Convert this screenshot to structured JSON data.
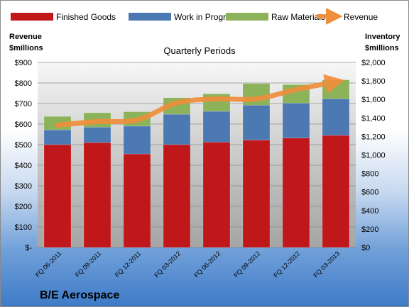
{
  "company_name": "B/E Aerospace",
  "chart_data": {
    "type": "bar",
    "title": "Quarterly Periods",
    "categories": [
      "FQ 06-2011",
      "FQ 09-2011",
      "FQ 12-2011",
      "FQ 03-2012",
      "FQ 06-2012",
      "FQ 09-2012",
      "FQ 12-2012",
      "FQ 03-2013"
    ],
    "stacked": true,
    "series": [
      {
        "name": "Finished Goods",
        "color": "#c0171b",
        "values": [
          500,
          510,
          455,
          500,
          512,
          522,
          532,
          545
        ]
      },
      {
        "name": "Work in Progress",
        "color": "#4d79b3",
        "values": [
          72,
          75,
          135,
          148,
          150,
          170,
          170,
          178
        ]
      },
      {
        "name": "Raw Materials",
        "color": "#8db35a",
        "values": [
          65,
          70,
          70,
          80,
          85,
          105,
          90,
          92
        ]
      }
    ],
    "line_series": {
      "name": "Revenue",
      "color": "#ef8f3c",
      "axis": "left",
      "values": [
        595,
        612,
        620,
        703,
        722,
        722,
        768,
        805
      ]
    },
    "left_axis": {
      "label_lines": [
        "Revenue",
        "$millions"
      ],
      "ylim": [
        0,
        900
      ],
      "ticks": [
        "$-",
        "$100",
        "$200",
        "$300",
        "$400",
        "$500",
        "$600",
        "$700",
        "$800",
        "$900"
      ]
    },
    "right_axis": {
      "label_lines": [
        "Inventory",
        "$millions"
      ],
      "ylim": [
        0,
        2000
      ],
      "ticks": [
        "$0",
        "$200",
        "$400",
        "$600",
        "$800",
        "$1,000",
        "$1,200",
        "$1,400",
        "$1,600",
        "$1,800",
        "$2,000"
      ]
    },
    "grid": true,
    "legend_position": "top"
  }
}
